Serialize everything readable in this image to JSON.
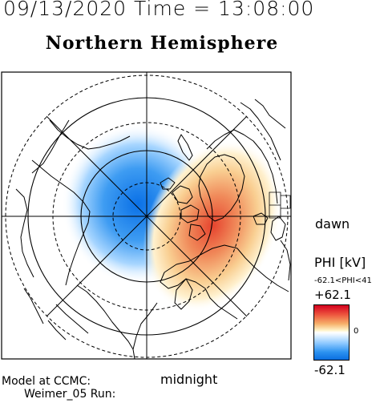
{
  "header": {
    "date_time": "09/13/2020 Time = 13:08:00"
  },
  "title": "Northern Hemisphere",
  "map": {
    "projection": "north polar stereographic",
    "orientation_labels": {
      "right": "dawn",
      "bottom": "midnight"
    },
    "potential_cells": [
      {
        "sign": "negative",
        "color": "#1e88f0",
        "location": "left / dusk side"
      },
      {
        "sign": "positive",
        "color": "#e8553a",
        "location": "right / dawn side"
      }
    ]
  },
  "colorbar": {
    "label": "PHI [kV]",
    "range_text": "-62.1<PHI<41",
    "max_label": "+62.1",
    "zero_label": "0",
    "min_label": "-62.1",
    "colors": {
      "max": "#d4001e",
      "mid": "#ffffff",
      "min": "#0a6ee0"
    }
  },
  "footer": {
    "model_label": "Model at CCMC:",
    "run_label": "Weimer_05 Run:"
  }
}
